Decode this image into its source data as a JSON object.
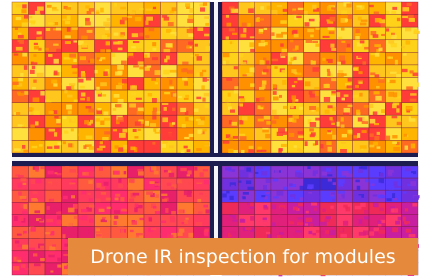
{
  "caption": "Drone IR inspection for modules"
}
